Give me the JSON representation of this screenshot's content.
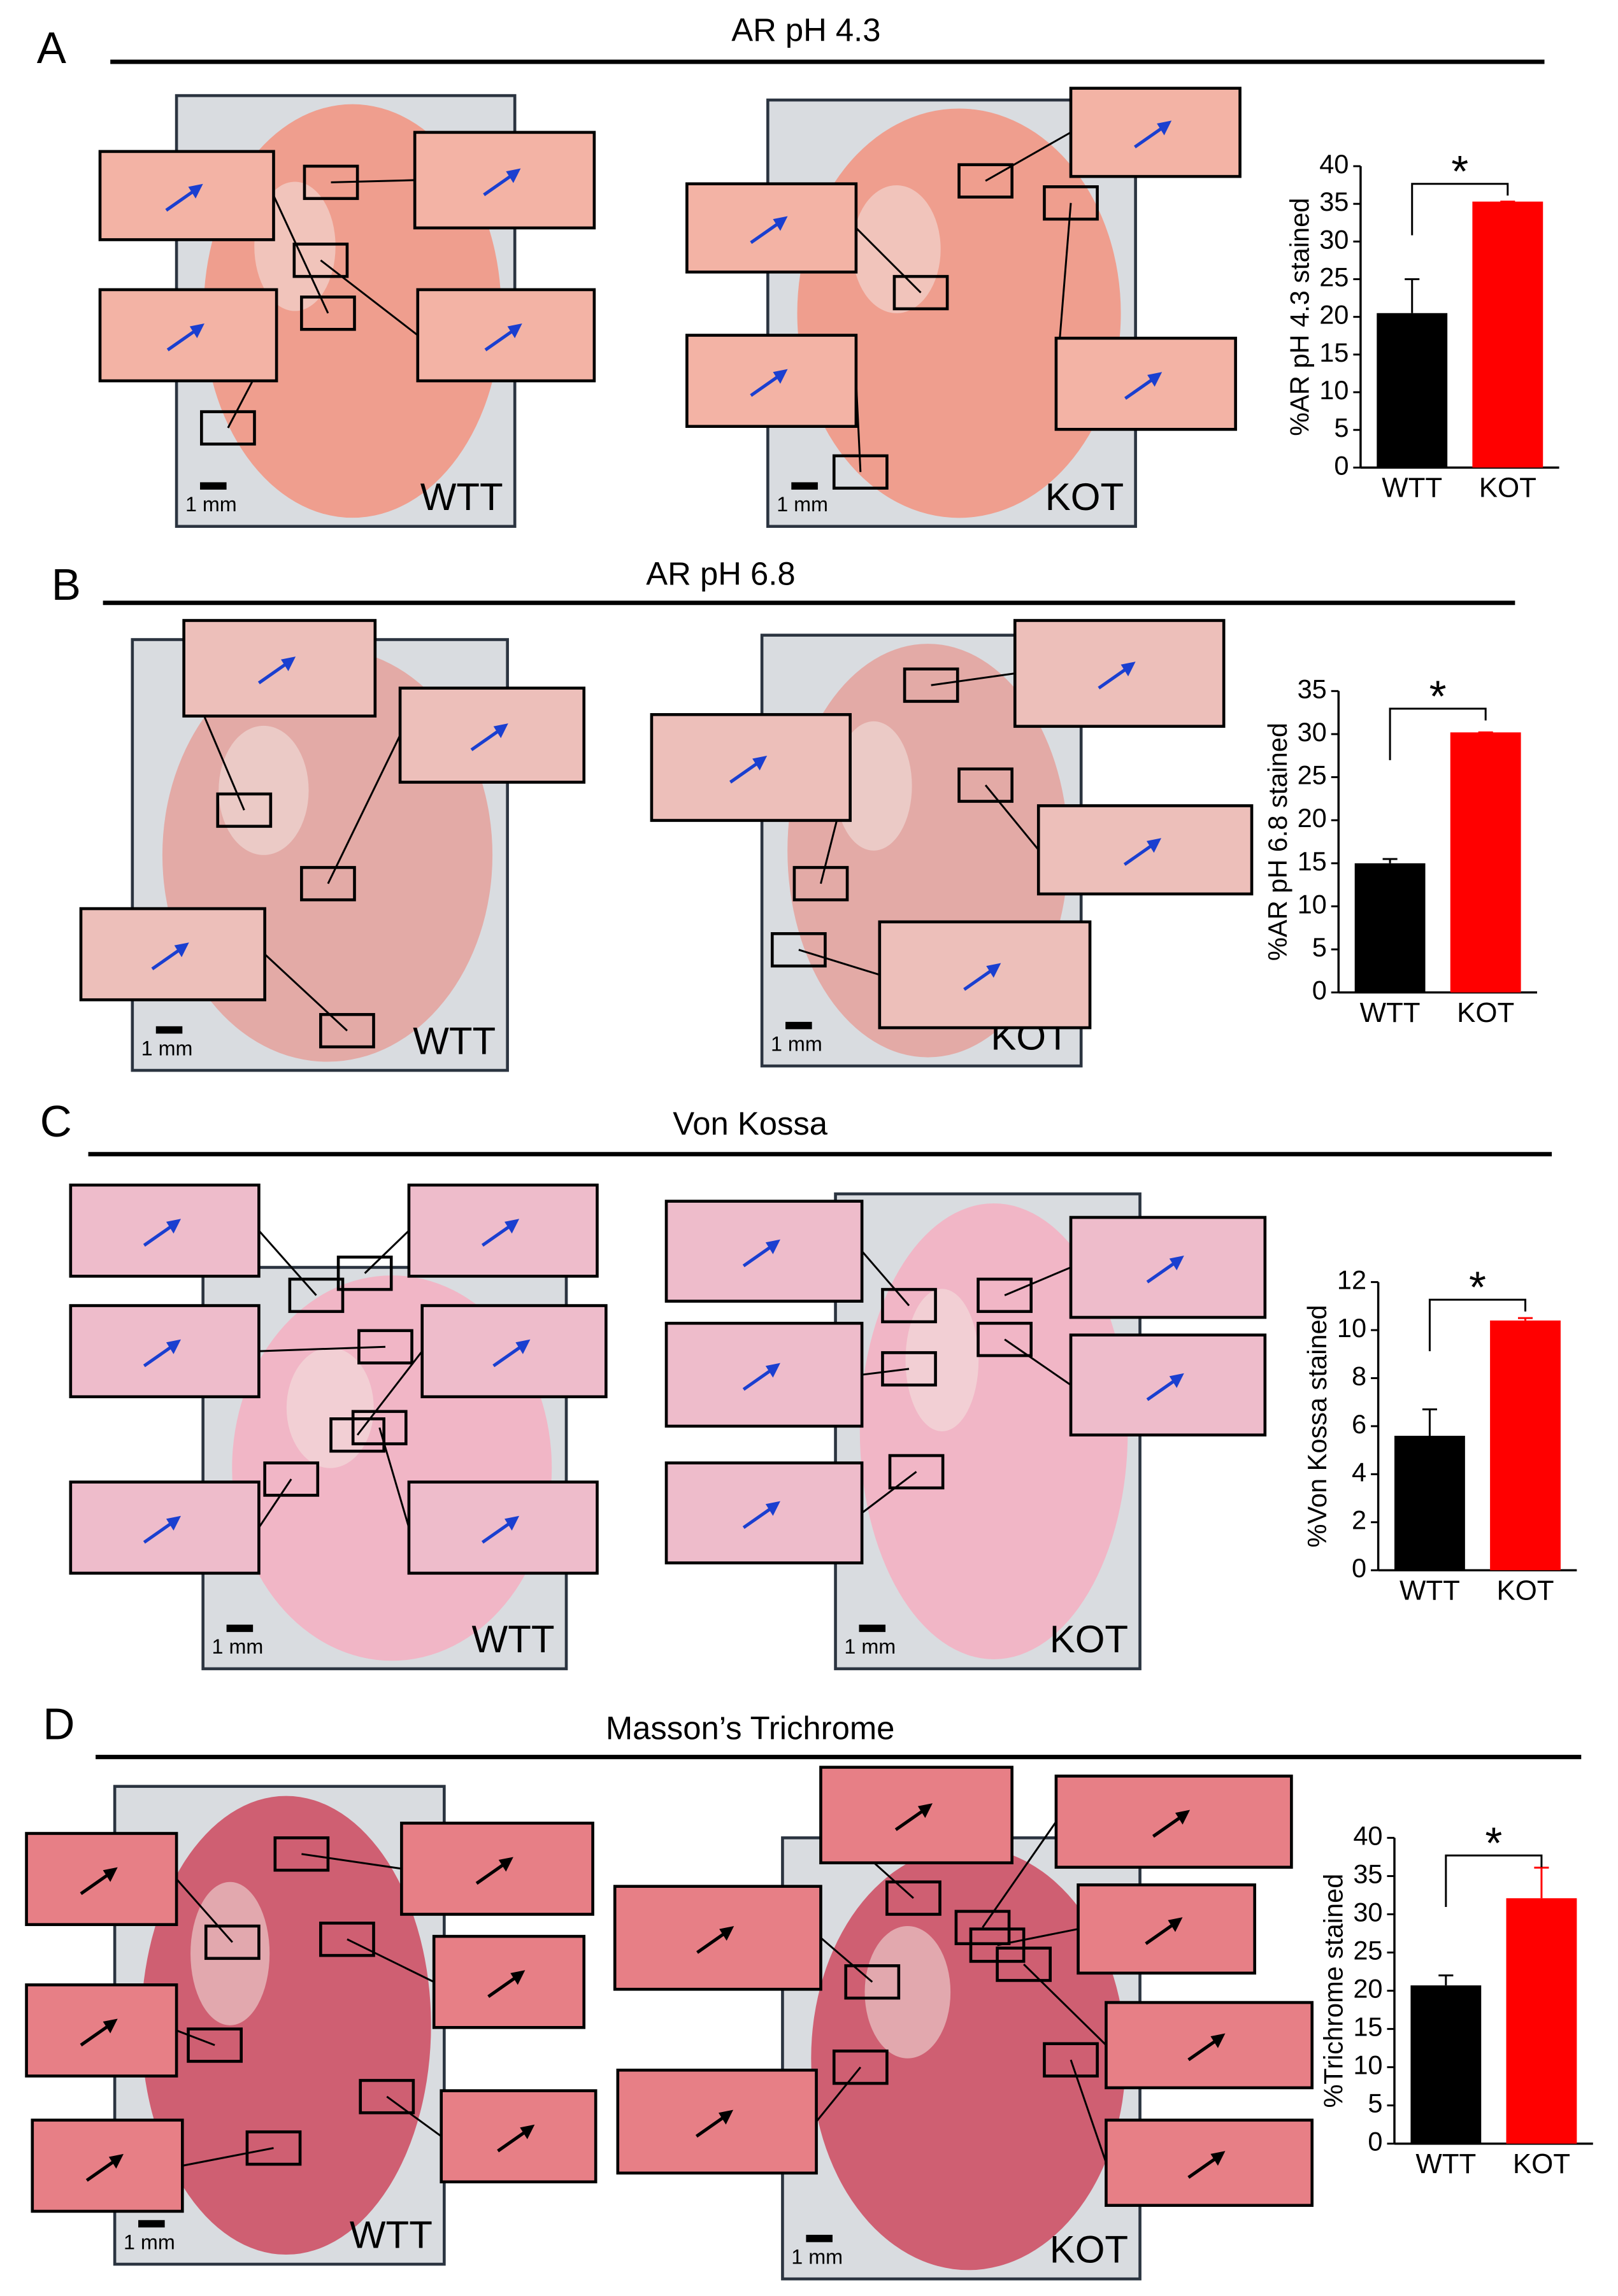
{
  "panels": [
    {
      "letter": "A",
      "title": "AR pH 4.3",
      "images": [
        {
          "label": "WTT",
          "scale": "1 mm"
        },
        {
          "label": "KOT",
          "scale": "1 mm"
        }
      ]
    },
    {
      "letter": "B",
      "title": "AR pH 6.8",
      "images": [
        {
          "label": "WTT",
          "scale": "1 mm"
        },
        {
          "label": "KOT",
          "scale": "1 mm"
        }
      ]
    },
    {
      "letter": "C",
      "title": "Von Kossa",
      "images": [
        {
          "label": "WTT",
          "scale": "1 mm"
        },
        {
          "label": "KOT",
          "scale": "1 mm"
        }
      ]
    },
    {
      "letter": "D",
      "title": "Masson’s Trichrome",
      "images": [
        {
          "label": "WTT",
          "scale": "1 mm"
        },
        {
          "label": "KOT",
          "scale": "1 mm"
        }
      ]
    }
  ],
  "chart_data": [
    {
      "type": "bar",
      "ylabel": "%AR pH 4.3 stained",
      "categories": [
        "WTT",
        "KOT"
      ],
      "values": [
        20.5,
        35.3
      ],
      "errors": [
        4.5,
        0
      ],
      "colors": [
        "#000000",
        "#ff0000"
      ],
      "ylim": [
        0,
        40
      ],
      "yticks": [
        0,
        5,
        10,
        15,
        20,
        25,
        30,
        35,
        40
      ],
      "annotation": "*"
    },
    {
      "type": "bar",
      "ylabel": "%AR pH 6.8 stained",
      "categories": [
        "WTT",
        "KOT"
      ],
      "values": [
        15,
        30.2
      ],
      "errors": [
        0.5,
        0
      ],
      "colors": [
        "#000000",
        "#ff0000"
      ],
      "ylim": [
        0,
        35
      ],
      "yticks": [
        0,
        5,
        10,
        15,
        20,
        25,
        30,
        35
      ],
      "annotation": "*"
    },
    {
      "type": "bar",
      "ylabel": "%Von Kossa stained",
      "categories": [
        "WTT",
        "KOT"
      ],
      "values": [
        5.6,
        10.4
      ],
      "errors": [
        1.1,
        0.1
      ],
      "colors": [
        "#000000",
        "#ff0000"
      ],
      "ylim": [
        0,
        12
      ],
      "yticks": [
        0,
        2,
        4,
        6,
        8,
        10,
        12
      ],
      "annotation": "*"
    },
    {
      "type": "bar",
      "ylabel": "%Trichrome stained",
      "categories": [
        "WTT",
        "KOT"
      ],
      "values": [
        20.7,
        32.1
      ],
      "errors": [
        1.3,
        4
      ],
      "colors": [
        "#000000",
        "#ff0000"
      ],
      "ylim": [
        0,
        40
      ],
      "yticks": [
        0,
        5,
        10,
        15,
        20,
        25,
        30,
        35,
        40
      ],
      "annotation": "*"
    }
  ]
}
